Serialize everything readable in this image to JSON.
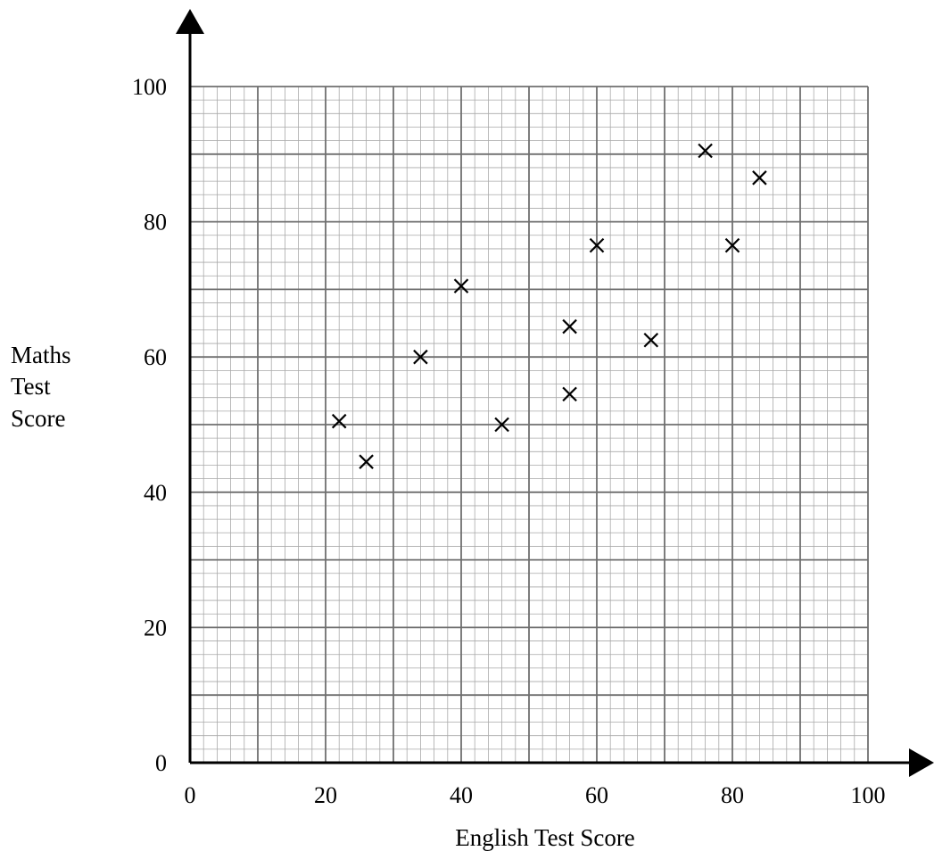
{
  "chart_data": {
    "type": "scatter",
    "xlabel": "English Test Score",
    "ylabel_lines": [
      "Maths",
      "Test",
      "Score"
    ],
    "xlim": [
      0,
      100
    ],
    "ylim": [
      0,
      100
    ],
    "x_ticks": [
      "0",
      "20",
      "40",
      "60",
      "80",
      "100"
    ],
    "y_ticks": [
      "0",
      "20",
      "40",
      "60",
      "80",
      "100"
    ],
    "grid": true,
    "marker": "cross",
    "points": [
      {
        "x": 22,
        "y": 50.5
      },
      {
        "x": 26,
        "y": 44.5
      },
      {
        "x": 34,
        "y": 60
      },
      {
        "x": 40,
        "y": 70.5
      },
      {
        "x": 46,
        "y": 50
      },
      {
        "x": 56,
        "y": 64.5
      },
      {
        "x": 56,
        "y": 54.5
      },
      {
        "x": 60,
        "y": 76.5
      },
      {
        "x": 68,
        "y": 62.5
      },
      {
        "x": 76,
        "y": 90.5
      },
      {
        "x": 80,
        "y": 76.5
      },
      {
        "x": 84,
        "y": 86.5
      }
    ]
  }
}
